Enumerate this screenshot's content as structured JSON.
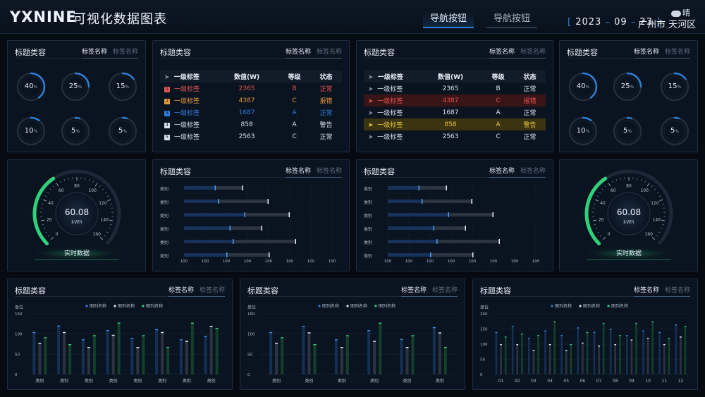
{
  "header": {
    "logo": "YXNINE",
    "title": "可视化数据图表",
    "nav": [
      {
        "label": "导航按钮",
        "active": true
      },
      {
        "label": "导航按钮",
        "active": false
      }
    ],
    "date": {
      "year": "2023",
      "month": "09",
      "day": "23"
    },
    "location": "广州市 天河区",
    "weather": "晴"
  },
  "panel_common": {
    "title": "标题类容",
    "tab_active": "标签名称",
    "tab_inactive": "标签名称"
  },
  "rings_left": [
    40,
    25,
    15,
    10,
    5,
    5
  ],
  "rings_right": [
    40,
    25,
    15,
    10,
    5,
    5
  ],
  "ring_unit": "%",
  "table_headers": [
    "一级标签",
    "数值(W)",
    "等级",
    "状态"
  ],
  "table_left_rows": [
    {
      "rank": "1",
      "label": "一级标签",
      "value": "2365",
      "grade": "B",
      "status": "正常",
      "color": "#e2544f"
    },
    {
      "rank": "2",
      "label": "一级标签",
      "value": "4387",
      "grade": "C",
      "status": "报错",
      "color": "#e89a3a"
    },
    {
      "rank": "3",
      "label": "一级标签",
      "value": "1687",
      "grade": "A",
      "status": "正常",
      "color": "#2f7ee0"
    },
    {
      "rank": "4",
      "label": "一级标签",
      "value": "858",
      "grade": "A",
      "status": "警告",
      "color": "#d6e2f0"
    },
    {
      "rank": "5",
      "label": "一级标签",
      "value": "2563",
      "grade": "C",
      "status": "正常",
      "color": "#d6e2f0"
    }
  ],
  "table_right_rows": [
    {
      "label": "一级标签",
      "value": "2365",
      "grade": "B",
      "status": "正常",
      "state": "normal"
    },
    {
      "label": "一级标签",
      "value": "4387",
      "grade": "C",
      "status": "报错",
      "state": "error"
    },
    {
      "label": "一级标签",
      "value": "1687",
      "grade": "A",
      "status": "正常",
      "state": "normal"
    },
    {
      "label": "一级标签",
      "value": "858",
      "grade": "A",
      "status": "警告",
      "state": "warn"
    },
    {
      "label": "一级标签",
      "value": "2563",
      "grade": "C",
      "status": "正常",
      "state": "normal"
    }
  ],
  "gauge": {
    "value": "60.08",
    "unit": "kWh",
    "ticks": [
      "0",
      "20",
      "40",
      "60",
      "80",
      "100",
      "120",
      "140",
      "160"
    ],
    "button": "实时数据",
    "min": 0,
    "max": 160,
    "fraction": 0.375
  },
  "colors": {
    "accent_blue": "#2c7fd6",
    "green": "#2fd27a",
    "error_row": "#3a1518",
    "warn_row": "#3a3410",
    "error_text": "#e2544f",
    "warn_text": "#e8c53a"
  },
  "chart_data": [
    {
      "type": "bar",
      "orientation": "horizontal",
      "categories": [
        "类别",
        "类别",
        "类别",
        "类别",
        "类别",
        "类别"
      ],
      "values_primary": [
        150,
        165,
        290,
        220,
        235,
        205
      ],
      "values_secondary": [
        280,
        400,
        500,
        370,
        530,
        405
      ],
      "xticks": [
        "100",
        "100",
        "100",
        "100",
        "100",
        "100",
        "100",
        "100"
      ],
      "xlim": [
        0,
        700
      ]
    },
    {
      "type": "bar",
      "orientation": "horizontal",
      "categories": [
        "类别",
        "类别",
        "类别",
        "类别",
        "类别",
        "类别"
      ],
      "values_primary": [
        150,
        165,
        290,
        220,
        235,
        205
      ],
      "values_secondary": [
        280,
        400,
        500,
        370,
        530,
        405
      ],
      "xticks": [
        "100",
        "100",
        "100",
        "100",
        "100",
        "100",
        "100",
        "100"
      ],
      "xlim": [
        0,
        700
      ]
    },
    {
      "type": "bar",
      "ylabel": "单位",
      "ylim": [
        0,
        150
      ],
      "yticks": [
        0,
        50,
        100,
        150
      ],
      "categories": [
        "类别",
        "类别",
        "类别",
        "类别",
        "类别",
        "类别",
        "类别",
        "类别"
      ],
      "legend": [
        "图列名称",
        "图列名称",
        "图列名称"
      ],
      "series": [
        {
          "values": [
            105,
            121,
            87,
            110,
            90,
            112,
            87,
            95
          ]
        },
        {
          "values": [
            78,
            105,
            68,
            98,
            68,
            105,
            83,
            120
          ]
        },
        {
          "values": [
            92,
            75,
            97,
            128,
            97,
            68,
            128,
            115
          ]
        }
      ]
    },
    {
      "type": "bar",
      "ylabel": "单位",
      "ylim": [
        0,
        150
      ],
      "yticks": [
        0,
        50,
        100,
        150
      ],
      "categories": [
        "类别",
        "类别",
        "类别",
        "类别",
        "类别",
        "类别"
      ],
      "legend": [
        "图列名称",
        "图列名称",
        "图列名称"
      ],
      "series": [
        {
          "values": [
            105,
            120,
            87,
            110,
            88,
            117
          ]
        },
        {
          "values": [
            78,
            104,
            68,
            83,
            68,
            104
          ]
        },
        {
          "values": [
            92,
            75,
            97,
            128,
            97,
            68
          ]
        }
      ]
    },
    {
      "type": "bar",
      "ylabel": "单位",
      "ylim": [
        0,
        200
      ],
      "yticks": [
        0,
        50,
        100,
        150,
        200
      ],
      "categories": [
        "01",
        "02",
        "03",
        "04",
        "05",
        "06",
        "07",
        "08",
        "09",
        "10",
        "11",
        "12"
      ],
      "legend": [
        "图列名称",
        "图列名称",
        "图列名称"
      ],
      "series": [
        {
          "values": [
            140,
            160,
            120,
            145,
            130,
            155,
            140,
            150,
            130,
            145,
            140,
            165
          ]
        },
        {
          "values": [
            100,
            100,
            80,
            100,
            80,
            105,
            95,
            100,
            115,
            120,
            100,
            125
          ]
        },
        {
          "values": [
            125,
            135,
            130,
            175,
            100,
            140,
            170,
            130,
            170,
            175,
            120,
            160
          ]
        }
      ]
    }
  ]
}
